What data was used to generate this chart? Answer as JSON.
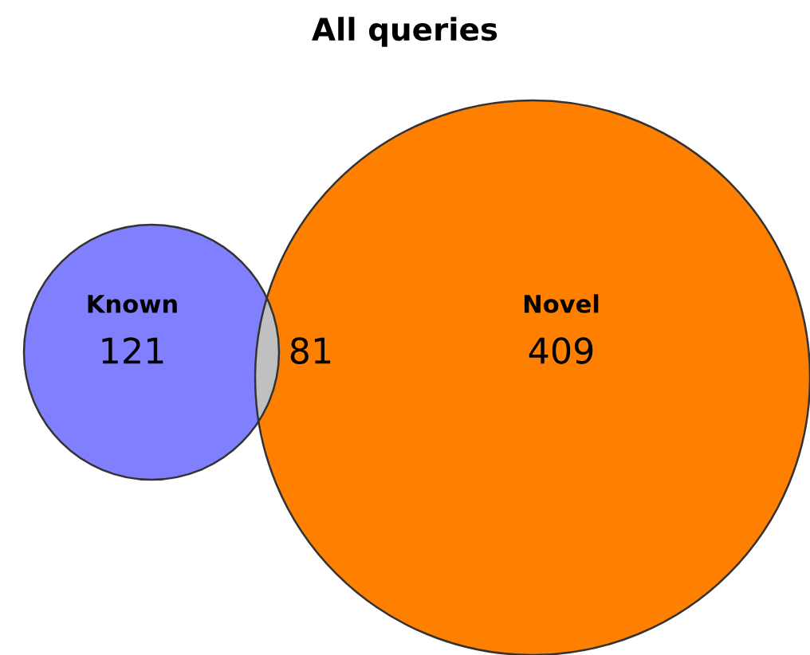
{
  "chart_data": {
    "type": "other",
    "title": "All queries",
    "categories": [
      "Known",
      null,
      "Novel"
    ],
    "values": [
      121,
      81,
      409
    ],
    "colors": [
      "#8080ff",
      "#c0c0c0",
      "#ff8000"
    ],
    "data_labels": true
  }
}
